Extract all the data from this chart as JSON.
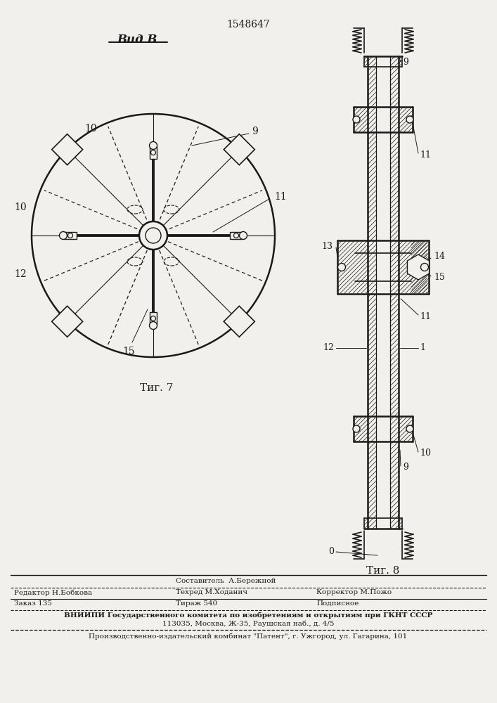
{
  "patent_number": "1548647",
  "fig7_label": "Τиг. 7",
  "fig8_label": "Τиг. 8",
  "vid_label": "Вид В",
  "bg_color": "#f2f0ec",
  "line_color": "#1a1a1a",
  "footer": {
    "line1_mid": "Составитель  А.Бережной",
    "line1_left": "Редактор Н.Бобкова",
    "line2_mid": "Техред М.Ходанич",
    "line2_right": "Корректор М.Пожо",
    "line3_left": "Заказ 135",
    "line3_mid": "Тираж 540",
    "line3_right": "Подписное",
    "line4": "ВНИИПИ Государственного комитета по изобретениям и открытиям при ГКНТ СССР",
    "line5": "113035, Москва, Ж-35, Раушская наб., д. 4/5",
    "line6": "Производственно-издательский комбинат \"Патент\", г. Ужгород, ул. Гагарина, 101"
  }
}
